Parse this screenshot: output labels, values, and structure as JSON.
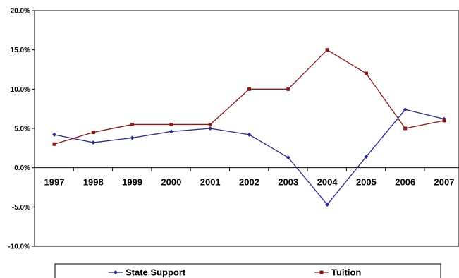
{
  "chart_data": {
    "type": "line",
    "title": "",
    "xlabel": "",
    "ylabel": "",
    "categories": [
      "1997",
      "1998",
      "1999",
      "2000",
      "2001",
      "2002",
      "2003",
      "2004",
      "2005",
      "2006",
      "2007"
    ],
    "ylim": [
      -10,
      20
    ],
    "yticks": [
      -10,
      -5,
      0,
      5,
      10,
      15,
      20
    ],
    "ytick_labels": [
      "-10.0%",
      "-5.0%",
      "0.0%",
      "5.0%",
      "10.0%",
      "15.0%",
      "20.0%"
    ],
    "grid": false,
    "legend_position": "bottom",
    "series": [
      {
        "name": "State Support",
        "color": "#2b2b8f",
        "marker": "diamond",
        "values": [
          4.2,
          3.2,
          3.8,
          4.6,
          5.0,
          4.2,
          1.3,
          -4.7,
          1.4,
          7.4,
          6.2
        ]
      },
      {
        "name": "Tuition",
        "color": "#8b1a1a",
        "marker": "square",
        "values": [
          3.0,
          4.5,
          5.5,
          5.5,
          5.5,
          10.0,
          10.0,
          15.0,
          12.0,
          5.0,
          6.0
        ]
      }
    ]
  }
}
